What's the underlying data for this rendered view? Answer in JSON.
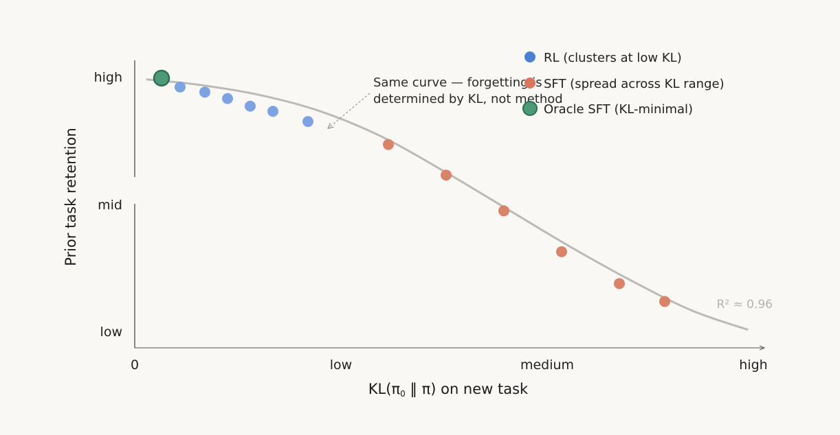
{
  "chart_data": {
    "type": "scatter",
    "title": "",
    "xlabel_main": "KL(π",
    "xlabel_sub": "0",
    "xlabel_tail": " ‖ π) on new task",
    "ylabel": "Prior task retention",
    "x_ticks": [
      {
        "label": "0",
        "value": 0
      },
      {
        "label": "low",
        "value": 1
      },
      {
        "label": "medium",
        "value": 2
      },
      {
        "label": "high",
        "value": 3
      }
    ],
    "y_ticks": [
      {
        "label": "low",
        "value": 0
      },
      {
        "label": "mid",
        "value": 1
      },
      {
        "label": "high",
        "value": 2
      }
    ],
    "xlim": [
      0,
      3.0
    ],
    "ylim": [
      0,
      2.0
    ],
    "y_axis_break": true,
    "grid": false,
    "legend_position": "top-right",
    "series": [
      {
        "name": "RL (clusters at low KL)",
        "color": "#4a7fd3",
        "point_color": "#7ea3e2",
        "points": [
          {
            "x": 0.22,
            "y": 1.92
          },
          {
            "x": 0.34,
            "y": 1.88
          },
          {
            "x": 0.45,
            "y": 1.83
          },
          {
            "x": 0.56,
            "y": 1.77
          },
          {
            "x": 0.67,
            "y": 1.73
          },
          {
            "x": 0.84,
            "y": 1.65
          }
        ]
      },
      {
        "name": "SFT (spread across KL range)",
        "color": "#d9785c",
        "point_color": "#d98468",
        "points": [
          {
            "x": 1.23,
            "y": 1.47
          },
          {
            "x": 1.51,
            "y": 1.23
          },
          {
            "x": 1.79,
            "y": 0.95
          },
          {
            "x": 2.07,
            "y": 0.63
          },
          {
            "x": 2.35,
            "y": 0.38
          },
          {
            "x": 2.57,
            "y": 0.24
          }
        ]
      },
      {
        "name": "Oracle SFT (KL-minimal)",
        "color": "#4e9a78",
        "point_color": "#4e9a78",
        "stroke": "#2f6e50",
        "points": [
          {
            "x": 0.13,
            "y": 1.99
          }
        ]
      }
    ],
    "fit_curve": {
      "color": "#bcbab6",
      "label": "R² ≈ 0.96",
      "points": [
        {
          "x": 0.06,
          "y": 1.98
        },
        {
          "x": 0.3,
          "y": 1.94
        },
        {
          "x": 0.6,
          "y": 1.86
        },
        {
          "x": 0.9,
          "y": 1.73
        },
        {
          "x": 1.2,
          "y": 1.53
        },
        {
          "x": 1.5,
          "y": 1.26
        },
        {
          "x": 1.8,
          "y": 0.97
        },
        {
          "x": 2.1,
          "y": 0.68
        },
        {
          "x": 2.4,
          "y": 0.41
        },
        {
          "x": 2.7,
          "y": 0.17
        },
        {
          "x": 2.97,
          "y": 0.02
        }
      ]
    },
    "annotation": {
      "lines": [
        "Same curve — forgetting is",
        "determined by KL, not method"
      ],
      "arrow_target": {
        "x": 0.94,
        "y": 1.6
      }
    }
  }
}
